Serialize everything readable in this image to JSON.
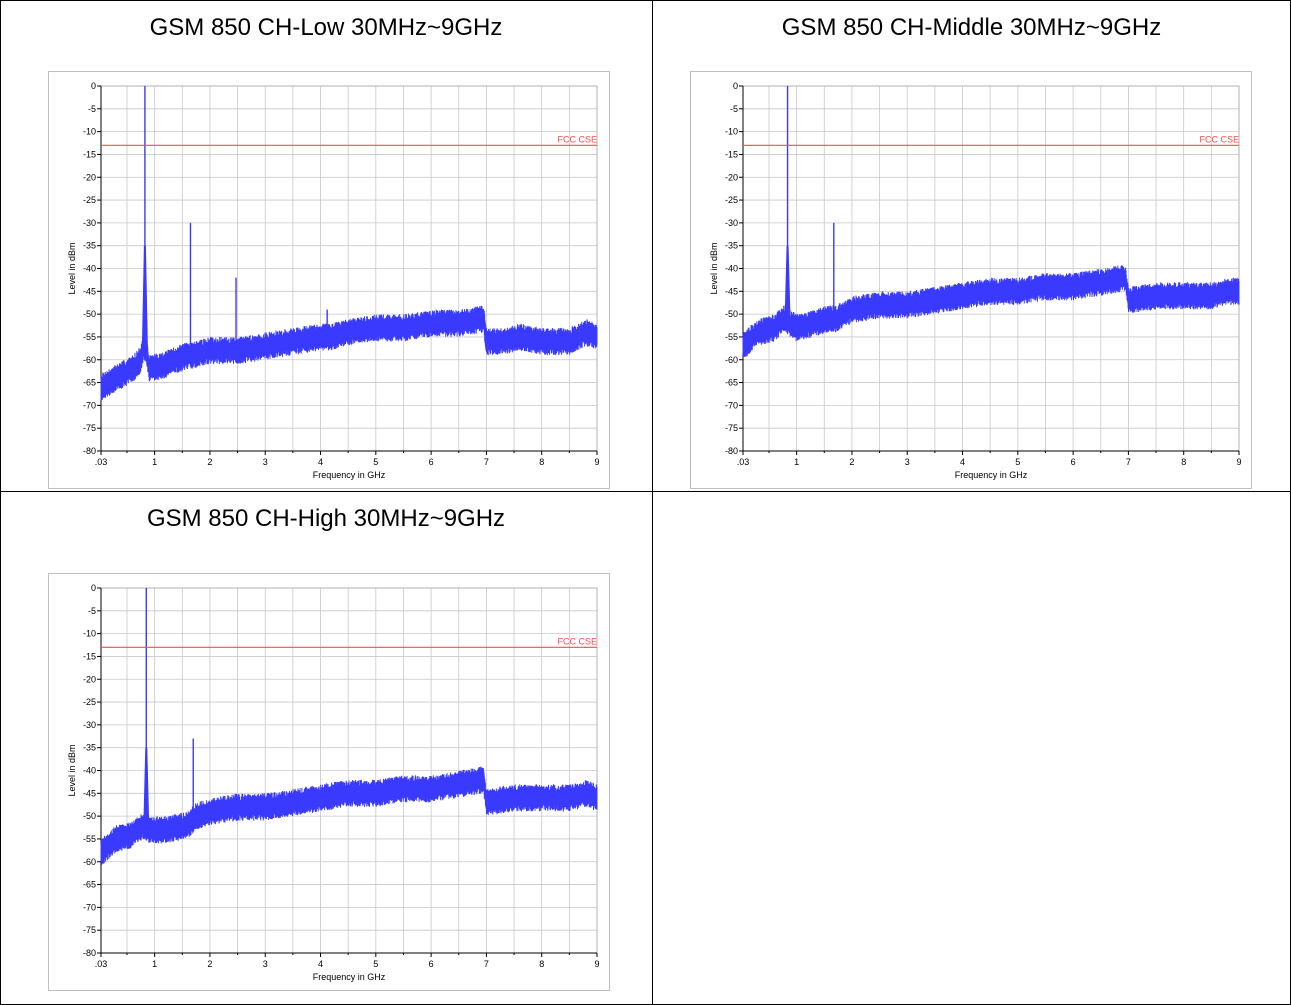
{
  "colors": {
    "trace": "#3a3aff",
    "limit": "#ff4a4a",
    "grid": "#c8c8c8",
    "axis": "#000000"
  },
  "chart_data": [
    {
      "type": "line",
      "title": "GSM 850 CH-Low 30MHz~9GHz",
      "xlabel": "Frequency in GHz",
      "ylabel": "Level in dBm",
      "xlim": [
        0.03,
        9
      ],
      "ylim": [
        -80,
        0
      ],
      "x_tick_labels": [
        ".03",
        "1",
        "2",
        "3",
        "4",
        "5",
        "6",
        "7",
        "8",
        "9"
      ],
      "y_tick_labels": [
        "0",
        "-5",
        "-10",
        "-15",
        "-20",
        "-25",
        "-30",
        "-35",
        "-40",
        "-45",
        "-50",
        "-55",
        "-60",
        "-65",
        "-70",
        "-75",
        "-80"
      ],
      "grid": true,
      "limit_line": {
        "name": "FCC CSE",
        "value": -13
      },
      "series": [
        {
          "x": [
            0.03,
            0.3,
            0.6,
            0.75,
            0.8,
            0.824,
            0.85,
            0.9,
            1.2,
            1.6,
            1.648,
            1.7,
            2.0,
            2.472,
            2.5,
            3.0,
            3.5,
            4.0,
            4.12,
            4.2,
            4.5,
            5.0,
            5.5,
            6.0,
            6.5,
            6.95,
            7.0,
            7.3,
            7.6,
            8.0,
            8.5,
            8.8,
            9.0
          ],
          "y": [
            -66,
            -64,
            -62,
            -60,
            -57,
            0,
            -58,
            -62,
            -61,
            -59,
            -30,
            -59,
            -58,
            -42,
            -58,
            -57,
            -56,
            -55,
            -49,
            -55,
            -54,
            -53,
            -53,
            -52,
            -52,
            -51,
            -56,
            -56,
            -55,
            -56,
            -56,
            -54,
            -55
          ]
        }
      ]
    },
    {
      "type": "line",
      "title": "GSM 850 CH-Middle 30MHz~9GHz",
      "xlabel": "Frequency in GHz",
      "ylabel": "Level in dBm",
      "xlim": [
        0.03,
        9
      ],
      "ylim": [
        -80,
        0
      ],
      "x_tick_labels": [
        ".03",
        "1",
        "2",
        "3",
        "4",
        "5",
        "6",
        "7",
        "8",
        "9"
      ],
      "y_tick_labels": [
        "0",
        "-5",
        "-10",
        "-15",
        "-20",
        "-25",
        "-30",
        "-35",
        "-40",
        "-45",
        "-50",
        "-55",
        "-60",
        "-65",
        "-70",
        "-75",
        "-80"
      ],
      "grid": true,
      "limit_line": {
        "name": "FCC CSE",
        "value": -13
      },
      "series": [
        {
          "x": [
            0.03,
            0.3,
            0.6,
            0.78,
            0.836,
            0.88,
            1.0,
            1.3,
            1.6,
            1.672,
            1.72,
            2.0,
            2.5,
            3.0,
            3.5,
            4.0,
            4.5,
            5.0,
            5.5,
            6.0,
            6.5,
            6.95,
            7.0,
            7.5,
            8.0,
            8.5,
            8.8,
            9.0
          ],
          "y": [
            -57,
            -54,
            -53,
            -51,
            0,
            -52,
            -53,
            -52,
            -51,
            -30,
            -51,
            -49,
            -48,
            -48,
            -47,
            -46,
            -45,
            -45,
            -44,
            -44,
            -43,
            -42,
            -47,
            -46,
            -46,
            -46,
            -45,
            -45
          ]
        }
      ]
    },
    {
      "type": "line",
      "title": "GSM 850 CH-High 30MHz~9GHz",
      "xlabel": "Frequency in GHz",
      "ylabel": "Level in dBm",
      "xlim": [
        0.03,
        9
      ],
      "ylim": [
        -80,
        0
      ],
      "x_tick_labels": [
        ".03",
        "1",
        "2",
        "3",
        "4",
        "5",
        "6",
        "7",
        "8",
        "9"
      ],
      "y_tick_labels": [
        "0",
        "-5",
        "-10",
        "-15",
        "-20",
        "-25",
        "-30",
        "-35",
        "-40",
        "-45",
        "-50",
        "-55",
        "-60",
        "-65",
        "-70",
        "-75",
        "-80"
      ],
      "grid": true,
      "limit_line": {
        "name": "FCC CSE",
        "value": -13
      },
      "series": [
        {
          "x": [
            0.03,
            0.3,
            0.6,
            0.8,
            0.849,
            0.9,
            1.2,
            1.6,
            1.698,
            1.75,
            2.0,
            2.5,
            3.0,
            3.5,
            4.0,
            4.5,
            5.0,
            5.5,
            6.0,
            6.5,
            6.95,
            7.0,
            7.5,
            8.0,
            8.5,
            8.8,
            9.0
          ],
          "y": [
            -58,
            -55,
            -54,
            -52,
            0,
            -53,
            -53,
            -52,
            -33,
            -50,
            -49,
            -48,
            -48,
            -47,
            -46,
            -45,
            -45,
            -44,
            -44,
            -43,
            -42,
            -47,
            -46,
            -46,
            -46,
            -45,
            -46
          ]
        }
      ]
    }
  ]
}
